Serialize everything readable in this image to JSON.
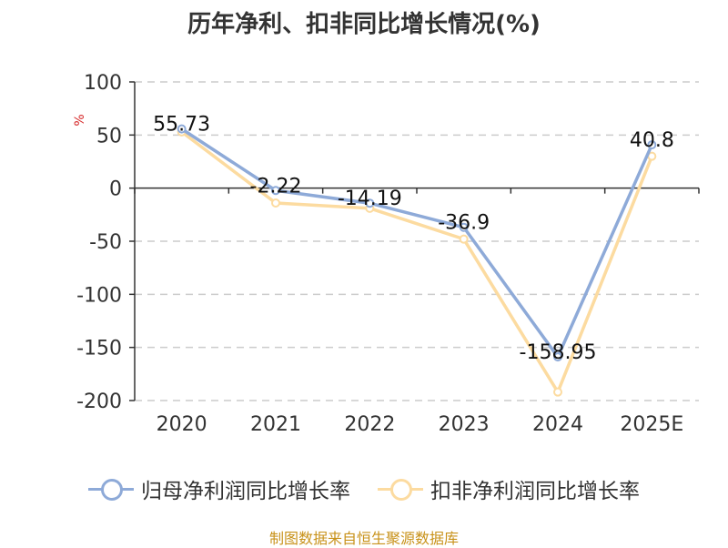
{
  "title": "历年净利、扣非同比增长情况(%)",
  "source": "制图数据来自恒生聚源数据库",
  "chart_data": {
    "type": "line",
    "title": "历年净利、扣非同比增长情况(%)",
    "unit_label": "%",
    "categories": [
      "2020",
      "2021",
      "2022",
      "2023",
      "2024",
      "2025E"
    ],
    "ylim": [
      -200,
      100
    ],
    "yticks": [
      "100",
      "50",
      "0",
      "-50",
      "-100",
      "-150",
      "-200"
    ],
    "grid": true,
    "legend_position": "bottom",
    "series": [
      {
        "name": "归母净利润同比增长率",
        "color": "#8eaad8",
        "values": [
          55.73,
          -2.22,
          -14.19,
          -36.9,
          -158.95,
          40.8
        ],
        "labels": [
          "55.73",
          "-2.22",
          "-14.19",
          "-36.9",
          "-158.95",
          "40.8"
        ]
      },
      {
        "name": "扣非净利润同比增长率",
        "color": "#fcdba0",
        "values": [
          53,
          -14,
          -19,
          -48,
          -192,
          30
        ]
      }
    ]
  }
}
